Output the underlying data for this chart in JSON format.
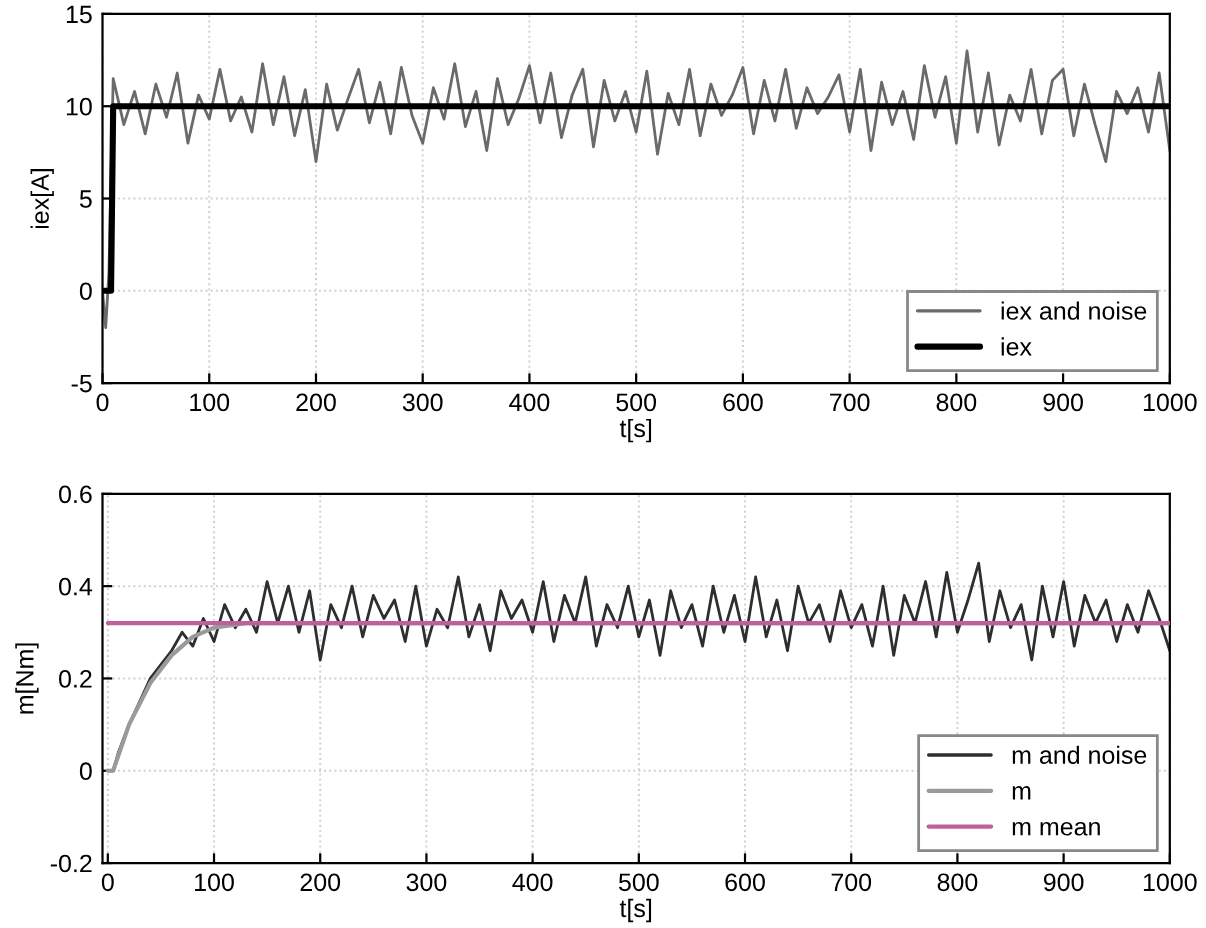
{
  "chart_data": [
    {
      "type": "line",
      "xlabel": "t[s]",
      "ylabel": "iex[A]",
      "xlim": [
        0,
        1000
      ],
      "ylim": [
        -5,
        15
      ],
      "xticks": [
        0,
        100,
        200,
        300,
        400,
        500,
        600,
        700,
        800,
        900,
        1000
      ],
      "yticks": [
        -5,
        0,
        5,
        10,
        15
      ],
      "grid": true,
      "legend": "bottom right",
      "line_style": "solid",
      "series": [
        {
          "name": "iex and noise",
          "color": "#6a6a6a",
          "x": [
            0,
            3,
            6,
            10,
            20,
            30,
            40,
            50,
            60,
            70,
            80,
            90,
            100,
            110,
            120,
            130,
            140,
            150,
            160,
            170,
            180,
            190,
            200,
            210,
            220,
            230,
            240,
            250,
            260,
            270,
            280,
            290,
            300,
            310,
            320,
            330,
            340,
            350,
            360,
            370,
            380,
            390,
            400,
            410,
            420,
            430,
            440,
            450,
            460,
            470,
            480,
            490,
            500,
            510,
            520,
            530,
            540,
            550,
            560,
            570,
            580,
            590,
            600,
            610,
            620,
            630,
            640,
            650,
            660,
            670,
            680,
            690,
            700,
            710,
            720,
            730,
            740,
            750,
            760,
            770,
            780,
            790,
            800,
            810,
            820,
            830,
            840,
            850,
            860,
            870,
            880,
            890,
            900,
            910,
            920,
            930,
            940,
            950,
            960,
            970,
            980,
            990,
            1000
          ],
          "values": [
            0,
            -2,
            1,
            11.5,
            9.0,
            10.8,
            8.5,
            11.2,
            9.4,
            11.8,
            8.0,
            10.6,
            9.3,
            12.0,
            9.2,
            10.5,
            8.6,
            12.3,
            9.0,
            11.6,
            8.4,
            10.9,
            7.0,
            11.2,
            8.7,
            10.4,
            12.0,
            9.1,
            11.3,
            8.5,
            12.1,
            9.5,
            8.0,
            11.0,
            9.3,
            12.3,
            8.9,
            10.8,
            7.6,
            11.5,
            9.0,
            10.4,
            12.2,
            9.1,
            11.8,
            8.3,
            10.6,
            12.0,
            7.8,
            11.4,
            9.2,
            10.8,
            8.6,
            11.9,
            7.4,
            10.7,
            9.0,
            12.0,
            8.4,
            11.2,
            9.5,
            10.6,
            12.1,
            8.5,
            11.4,
            9.2,
            12.0,
            8.8,
            11.0,
            9.6,
            10.5,
            11.7,
            8.6,
            12.0,
            7.6,
            11.3,
            9.0,
            10.8,
            8.2,
            12.2,
            9.4,
            11.6,
            8.0,
            13.0,
            8.6,
            11.8,
            7.9,
            10.6,
            9.2,
            12.0,
            8.5,
            11.4,
            12.0,
            8.4,
            11.2,
            9.0,
            7.0,
            10.8,
            9.6,
            11.0,
            8.6,
            11.8,
            7.6
          ]
        },
        {
          "name": "iex",
          "color": "#000000",
          "x": [
            0,
            8,
            10,
            1000
          ],
          "values": [
            0,
            0,
            10,
            10
          ]
        }
      ]
    },
    {
      "type": "line",
      "xlabel": "t[s]",
      "ylabel": "m[Nm]",
      "xlim": [
        -5,
        1000
      ],
      "ylim": [
        -0.2,
        0.6
      ],
      "xticks": [
        0,
        100,
        200,
        300,
        400,
        500,
        600,
        700,
        800,
        900,
        1000
      ],
      "yticks": [
        -0.2,
        0,
        0.2,
        0.4,
        0.6
      ],
      "grid": true,
      "legend": "bottom right",
      "line_style": "solid",
      "series": [
        {
          "name": "m and noise",
          "color": "#2e2e2e",
          "x": [
            0,
            5,
            10,
            20,
            30,
            40,
            50,
            60,
            70,
            80,
            90,
            100,
            110,
            120,
            130,
            140,
            150,
            160,
            170,
            180,
            190,
            200,
            210,
            220,
            230,
            240,
            250,
            260,
            270,
            280,
            290,
            300,
            310,
            320,
            330,
            340,
            350,
            360,
            370,
            380,
            390,
            400,
            410,
            420,
            430,
            440,
            450,
            460,
            470,
            480,
            490,
            500,
            510,
            520,
            530,
            540,
            550,
            560,
            570,
            580,
            590,
            600,
            610,
            620,
            630,
            640,
            650,
            660,
            670,
            680,
            690,
            700,
            710,
            720,
            730,
            740,
            750,
            760,
            770,
            780,
            790,
            800,
            810,
            820,
            830,
            840,
            850,
            860,
            870,
            880,
            890,
            900,
            910,
            920,
            930,
            940,
            950,
            960,
            970,
            980,
            990,
            1000
          ],
          "values": [
            0,
            0,
            0.04,
            0.1,
            0.15,
            0.2,
            0.23,
            0.26,
            0.3,
            0.27,
            0.33,
            0.28,
            0.36,
            0.31,
            0.35,
            0.3,
            0.41,
            0.32,
            0.4,
            0.3,
            0.39,
            0.24,
            0.36,
            0.31,
            0.4,
            0.29,
            0.38,
            0.33,
            0.37,
            0.28,
            0.4,
            0.27,
            0.35,
            0.31,
            0.42,
            0.29,
            0.36,
            0.26,
            0.39,
            0.33,
            0.37,
            0.3,
            0.41,
            0.28,
            0.38,
            0.32,
            0.42,
            0.27,
            0.36,
            0.31,
            0.4,
            0.29,
            0.37,
            0.25,
            0.39,
            0.31,
            0.36,
            0.27,
            0.4,
            0.3,
            0.38,
            0.28,
            0.42,
            0.29,
            0.37,
            0.26,
            0.4,
            0.32,
            0.36,
            0.28,
            0.39,
            0.31,
            0.36,
            0.27,
            0.4,
            0.25,
            0.38,
            0.32,
            0.41,
            0.29,
            0.43,
            0.3,
            0.37,
            0.45,
            0.28,
            0.39,
            0.31,
            0.36,
            0.24,
            0.4,
            0.29,
            0.41,
            0.27,
            0.38,
            0.32,
            0.37,
            0.28,
            0.36,
            0.3,
            0.39,
            0.33,
            0.26
          ]
        },
        {
          "name": "m",
          "color": "#9a9a9a",
          "x": [
            0,
            5,
            20,
            40,
            60,
            80,
            100,
            130,
            160,
            200,
            1000
          ],
          "values": [
            0,
            0,
            0.1,
            0.19,
            0.25,
            0.29,
            0.31,
            0.32,
            0.32,
            0.32,
            0.32
          ]
        },
        {
          "name": "m mean",
          "color": "#c0609a",
          "x": [
            0,
            1000
          ],
          "values": [
            0.32,
            0.32
          ]
        }
      ]
    }
  ]
}
